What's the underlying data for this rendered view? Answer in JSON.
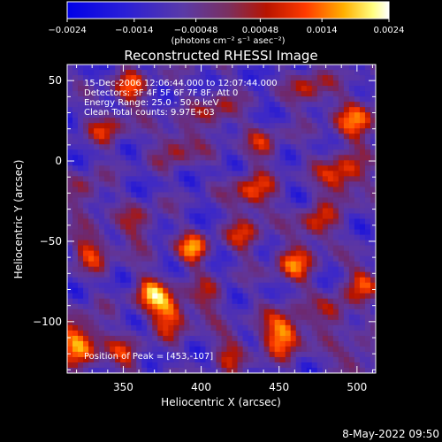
{
  "colorbar": {
    "tick_labels": [
      "−0.0024",
      "−0.0014",
      "−0.00048",
      "0.00048",
      "0.0014",
      "0.0024"
    ],
    "range": [
      -0.0024,
      0.0024
    ],
    "unit_label": "(photons cm⁻² s⁻¹ asec⁻²)"
  },
  "chart_data": {
    "type": "heatmap",
    "title": "Reconstructed RHESSI Image",
    "xlabel": "Heliocentric X (arcsec)",
    "ylabel": "Heliocentric Y (arcsec)",
    "xlim": [
      314,
      512
    ],
    "ylim": [
      -132,
      60
    ],
    "xticks": [
      350,
      400,
      450,
      500
    ],
    "yticks": [
      50,
      0,
      -50,
      -100
    ],
    "colormap": "blue-purple-red-yellow-white",
    "peak": [
      453,
      -107
    ],
    "annotations": [
      "15-Dec-2006 12:06:44.000 to 12:07:44.000",
      "Detectors: 3F 4F 5F 6F 7F 8F, Att 0",
      "Energy Range: 25.0 - 50.0 keV",
      "Clean    Total counts: 9.97E+03"
    ],
    "peak_label": "Position of Peak = [453,-107]"
  },
  "footer": {
    "date": "8-May-2022 09:50"
  }
}
